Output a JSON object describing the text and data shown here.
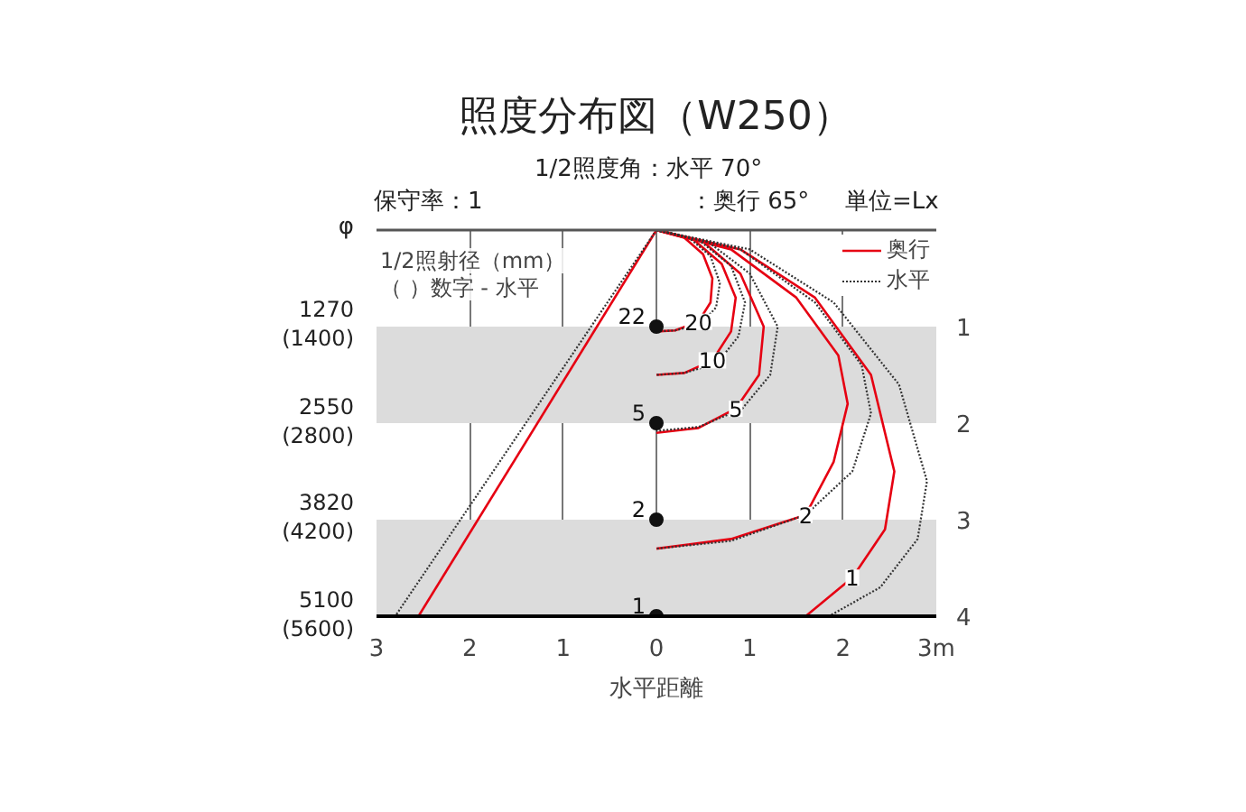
{
  "chart_data": {
    "type": "line",
    "title": "照度分布図（W250）",
    "xlabel": "水平距離",
    "annotations": [
      "1/2照度角：水平 70°",
      "：奥行 65°",
      "保守率：1",
      "単位=Lx",
      "1/2照射径（mm）",
      "（ ）数字 - 水平",
      "φ",
      "1270 (1400)",
      "2550 (2800)",
      "3820 (4200)",
      "5100 (5600)",
      {
        "text": "20",
        "x": 0.45,
        "y": 0.95
      },
      {
        "text": "10",
        "x": 0.6,
        "y": 1.35
      },
      {
        "text": "5",
        "x": 0.85,
        "y": 1.85
      },
      {
        "text": "2",
        "x": 1.6,
        "y": 2.95
      },
      {
        "text": "1",
        "x": 2.1,
        "y": 3.6
      },
      {
        "text": "22",
        "x": 0,
        "y": 1
      },
      {
        "text": "5",
        "x": 0,
        "y": 2
      },
      {
        "text": "2",
        "x": 0,
        "y": 3
      },
      {
        "text": "1",
        "x": 0,
        "y": 4
      }
    ],
    "xlim": [
      -3,
      3
    ],
    "xticks": [
      {
        "value": -3,
        "label": "3"
      },
      {
        "value": -2,
        "label": "2"
      },
      {
        "value": -1,
        "label": "1"
      },
      0,
      1,
      2,
      {
        "value": 3,
        "label": "3m"
      }
    ],
    "ylim": [
      4,
      0
    ],
    "yticks": [
      1,
      2,
      3,
      4
    ],
    "bands": [
      {
        "axis": "y",
        "from": 1,
        "to": 2,
        "color": "#dcdcdc"
      },
      {
        "axis": "y",
        "from": 3,
        "to": 4,
        "color": "#dcdcdc"
      }
    ],
    "grid": "x",
    "legend": "top right",
    "series": [
      {
        "name": "奥行",
        "color": "#e60012",
        "line_style": "solid",
        "x": [
          0,
          -2.55
        ],
        "values": [
          0,
          4
        ]
      },
      {
        "name": "水平",
        "color": "#333333",
        "line_style": "dotted",
        "x": [
          0,
          -2.8
        ],
        "values": [
          0,
          4
        ]
      },
      {
        "color": "#e60012",
        "line_style": "solid",
        "x": [
          0,
          0.3,
          0.5,
          0.6,
          0.58,
          0.45,
          0.2,
          0
        ],
        "values": [
          0,
          0.08,
          0.25,
          0.5,
          0.75,
          0.95,
          1.04,
          1.05
        ]
      },
      {
        "color": "#e60012",
        "line_style": "solid",
        "x": [
          0,
          0.4,
          0.7,
          0.85,
          0.8,
          0.6,
          0.3,
          0
        ],
        "values": [
          0,
          0.1,
          0.35,
          0.7,
          1.05,
          1.35,
          1.48,
          1.5
        ]
      },
      {
        "color": "#e60012",
        "line_style": "solid",
        "x": [
          0,
          0.5,
          0.9,
          1.15,
          1.1,
          0.85,
          0.45,
          0
        ],
        "values": [
          0,
          0.12,
          0.45,
          1.0,
          1.5,
          1.85,
          2.05,
          2.1
        ]
      },
      {
        "color": "#e60012",
        "line_style": "solid",
        "x": [
          0,
          0.8,
          1.5,
          1.95,
          2.05,
          1.9,
          1.6,
          0.8,
          0
        ],
        "values": [
          0,
          0.2,
          0.7,
          1.3,
          1.8,
          2.4,
          2.95,
          3.2,
          3.3
        ]
      },
      {
        "color": "#e60012",
        "line_style": "solid",
        "x": [
          0,
          0.9,
          1.7,
          2.3,
          2.55,
          2.45,
          2.1,
          1.6
        ],
        "values": [
          0,
          0.2,
          0.7,
          1.5,
          2.5,
          3.1,
          3.6,
          4.0
        ]
      },
      {
        "color": "#333333",
        "line_style": "dotted",
        "x": [
          0,
          0.35,
          0.58,
          0.68,
          0.64,
          0.48,
          0.2,
          0
        ],
        "values": [
          0,
          0.08,
          0.27,
          0.55,
          0.8,
          0.97,
          1.04,
          1.05
        ]
      },
      {
        "color": "#333333",
        "line_style": "dotted",
        "x": [
          0,
          0.45,
          0.8,
          0.95,
          0.88,
          0.65,
          0.3,
          0
        ],
        "values": [
          0,
          0.1,
          0.37,
          0.75,
          1.1,
          1.38,
          1.48,
          1.5
        ]
      },
      {
        "color": "#333333",
        "line_style": "dotted",
        "x": [
          0,
          0.55,
          1.0,
          1.3,
          1.22,
          0.92,
          0.45,
          0
        ],
        "values": [
          0,
          0.12,
          0.45,
          1.0,
          1.5,
          1.85,
          2.04,
          2.08
        ]
      },
      {
        "color": "#333333",
        "line_style": "dotted",
        "x": [
          0,
          0.9,
          1.7,
          2.2,
          2.3,
          2.1,
          1.6,
          0.8,
          0
        ],
        "values": [
          0,
          0.2,
          0.75,
          1.4,
          1.9,
          2.5,
          2.95,
          3.22,
          3.3
        ]
      },
      {
        "color": "#333333",
        "line_style": "dotted",
        "x": [
          0,
          1.0,
          1.9,
          2.6,
          2.9,
          2.8,
          2.4,
          1.85
        ],
        "values": [
          0,
          0.2,
          0.75,
          1.6,
          2.6,
          3.2,
          3.7,
          4.0
        ]
      },
      {
        "type": "scatter",
        "marker": "circle",
        "color": "#111111",
        "x": [
          0,
          0,
          0,
          0
        ],
        "values": [
          1,
          2,
          3,
          4
        ]
      }
    ]
  }
}
